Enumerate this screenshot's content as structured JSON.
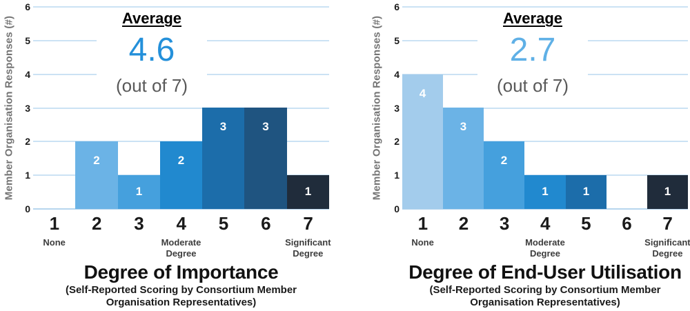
{
  "style": {
    "background": "#ffffff",
    "bar_palette": [
      "#A3CCEC",
      "#6BB3E6",
      "#45A0DD",
      "#2189CF",
      "#1C6DAA",
      "#1F5480",
      "#202C3B"
    ],
    "grid_color": "#CBE2F4",
    "baseline_color": "#B6D5EE",
    "tick_label_color": "#1a1a1a",
    "y_axis_label_color": "#747474",
    "suffix_color": "#595959"
  },
  "chart_data": [
    {
      "type": "bar",
      "title": "Degree of Importance",
      "subtitle_line1": "(Self-Reported Scoring by Consortium Member",
      "subtitle_line2": "Organisation Representatives)",
      "ylabel": "Member Organisation Responses (#)",
      "categories": [
        "1",
        "2",
        "3",
        "4",
        "5",
        "6",
        "7"
      ],
      "category_sublabels": [
        "None",
        "",
        "",
        "Moderate Degree",
        "",
        "",
        "Significant Degree"
      ],
      "values": [
        0,
        2,
        1,
        2,
        3,
        3,
        1
      ],
      "ylim": [
        0,
        6
      ],
      "yticks": [
        6,
        5,
        4,
        3,
        2,
        1,
        0
      ],
      "grid": true,
      "legend": false,
      "average": {
        "heading": "Average",
        "value": "4.6",
        "suffix": "(out of 7)",
        "value_color": "#2490DA"
      }
    },
    {
      "type": "bar",
      "title": "Degree of End-User Utilisation",
      "subtitle_line1": "(Self-Reported Scoring by Consortium Member",
      "subtitle_line2": "Organisation Representatives)",
      "ylabel": "Member Organisation Responses (#)",
      "categories": [
        "1",
        "2",
        "3",
        "4",
        "5",
        "6",
        "7"
      ],
      "category_sublabels": [
        "None",
        "",
        "",
        "Moderate Degree",
        "",
        "",
        "Significant Degree"
      ],
      "values": [
        4,
        3,
        2,
        1,
        1,
        0,
        1
      ],
      "ylim": [
        0,
        6
      ],
      "yticks": [
        6,
        5,
        4,
        3,
        2,
        1,
        0
      ],
      "grid": true,
      "legend": false,
      "average": {
        "heading": "Average",
        "value": "2.7",
        "suffix": "(out of 7)",
        "value_color": "#5FB0E6"
      }
    }
  ]
}
